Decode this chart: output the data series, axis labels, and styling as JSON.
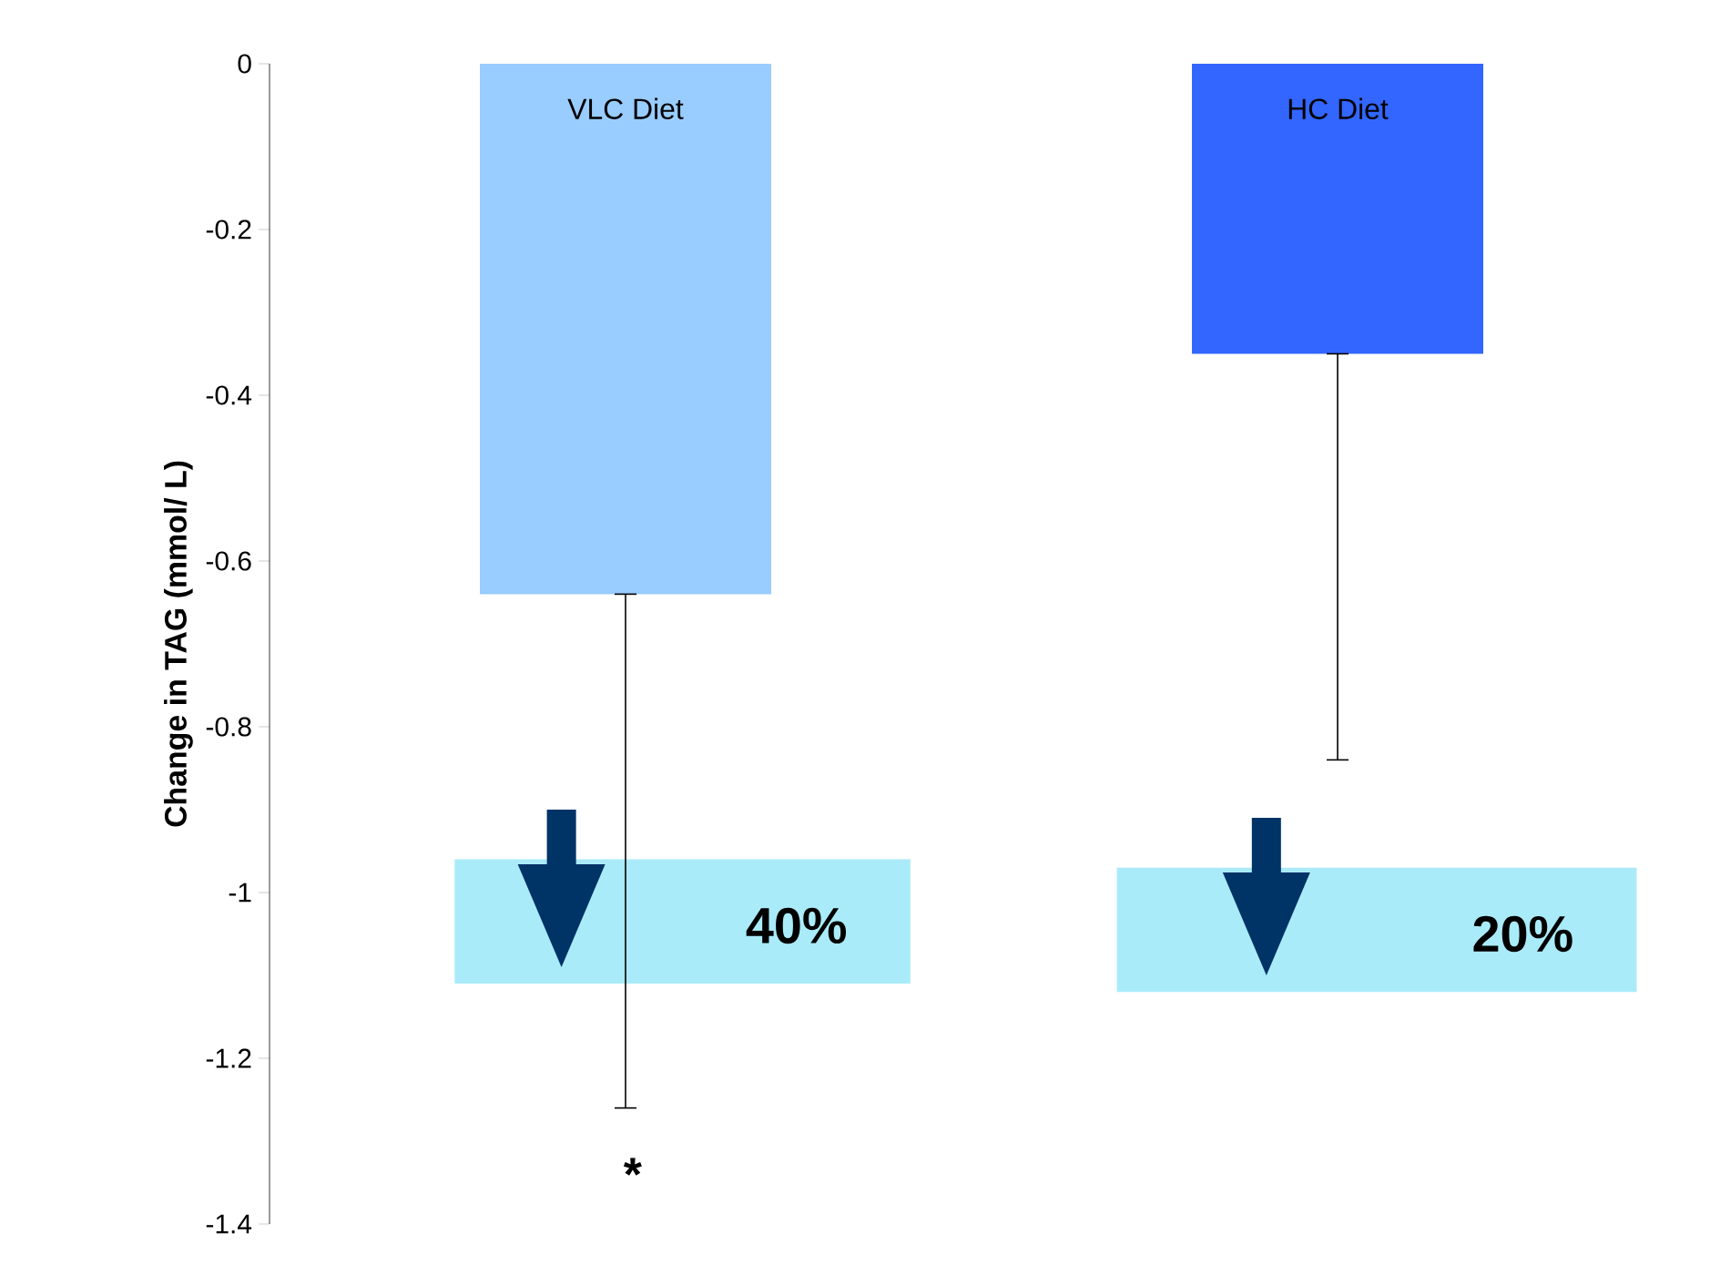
{
  "chart_data": {
    "type": "bar",
    "ylabel": "Change in TAG (mmol/ L)",
    "categories": [
      "VLC Diet",
      "HC Diet"
    ],
    "values": [
      -0.64,
      -0.35
    ],
    "colors": [
      "#99ccff",
      "#3366ff"
    ],
    "errors": [
      [
        -1.26,
        -0.64
      ],
      [
        -0.84,
        -0.35
      ]
    ],
    "ylim": [
      -1.4,
      0
    ],
    "yticks": [
      0,
      -0.2,
      -0.4,
      -0.6,
      -0.8,
      -1,
      -1.2,
      -1.4
    ],
    "annotations": [
      "40%",
      "20%",
      "*"
    ],
    "grid": false
  }
}
